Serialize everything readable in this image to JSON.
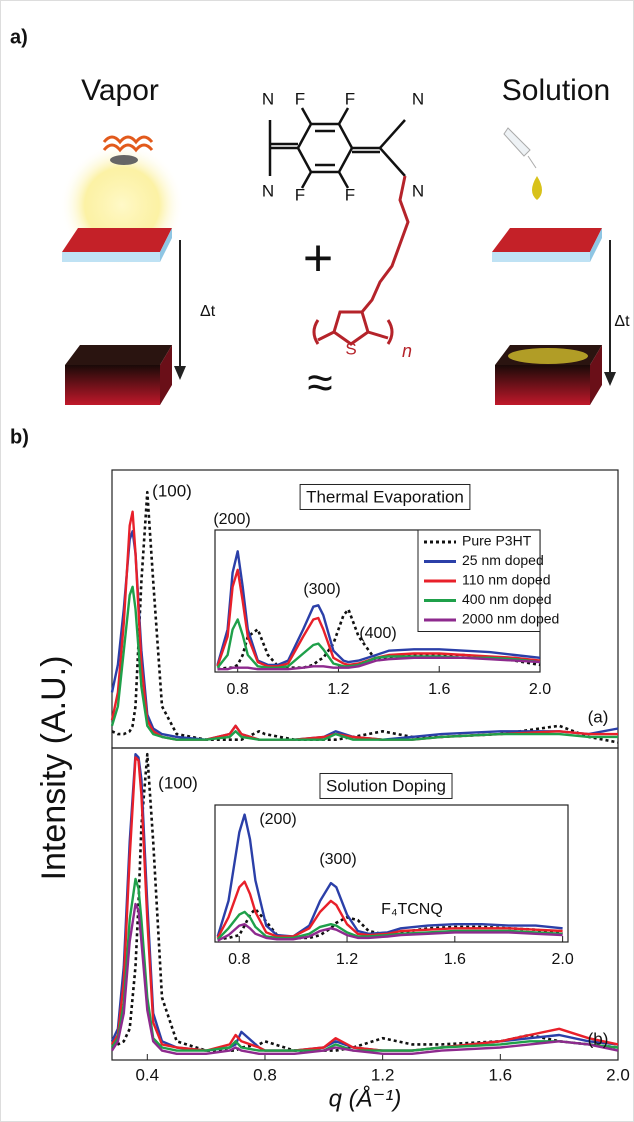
{
  "panel_a": {
    "label": "a)",
    "vapor": "Vapor",
    "solution": "Solution",
    "delta_t_vapor": "Δt",
    "delta_t_solution": "Δt",
    "plus": "+",
    "approx": "≈",
    "atoms": [
      "N",
      "N",
      "N",
      "N",
      "F",
      "F",
      "F",
      "F",
      "S"
    ],
    "repeat": "n"
  },
  "panel_b": {
    "label": "b)",
    "y_label": "Intensity (A.U.)",
    "x_label": "q (Å⁻¹)"
  },
  "chart_data": [
    {
      "type": "line",
      "title": "Thermal Evaporation",
      "annotations": [
        "(100)",
        "(a)"
      ],
      "xlim": [
        0.28,
        2.0
      ],
      "ylim": [
        0,
        1
      ],
      "x": [
        0.28,
        0.3,
        0.32,
        0.34,
        0.35,
        0.36,
        0.38,
        0.4,
        0.42,
        0.45,
        0.5,
        0.6,
        0.68,
        0.7,
        0.72,
        0.78,
        0.8,
        0.9,
        1.0,
        1.04,
        1.1,
        1.2,
        1.3,
        1.4,
        1.6,
        1.8,
        1.9,
        2.0
      ],
      "series": [
        {
          "color": "#111111",
          "dashed": true,
          "values": [
            0.06,
            0.05,
            0.05,
            0.06,
            0.08,
            0.15,
            0.6,
            0.92,
            0.6,
            0.15,
            0.05,
            0.03,
            0.03,
            0.03,
            0.03,
            0.06,
            0.05,
            0.03,
            0.03,
            0.03,
            0.04,
            0.06,
            0.04,
            0.04,
            0.05,
            0.08,
            0.04,
            0.02
          ]
        },
        {
          "color": "#2b3fa8",
          "values": [
            0.2,
            0.3,
            0.5,
            0.75,
            0.78,
            0.7,
            0.35,
            0.12,
            0.07,
            0.05,
            0.04,
            0.03,
            0.05,
            0.08,
            0.05,
            0.03,
            0.03,
            0.03,
            0.04,
            0.06,
            0.04,
            0.03,
            0.04,
            0.05,
            0.06,
            0.06,
            0.05,
            0.07
          ]
        },
        {
          "color": "#e8202a",
          "values": [
            0.1,
            0.2,
            0.45,
            0.8,
            0.85,
            0.7,
            0.3,
            0.1,
            0.06,
            0.04,
            0.03,
            0.03,
            0.05,
            0.08,
            0.05,
            0.03,
            0.03,
            0.03,
            0.04,
            0.05,
            0.04,
            0.03,
            0.03,
            0.04,
            0.05,
            0.06,
            0.05,
            0.05
          ]
        },
        {
          "color": "#1fa04a",
          "values": [
            0.08,
            0.15,
            0.35,
            0.55,
            0.58,
            0.5,
            0.22,
            0.08,
            0.05,
            0.04,
            0.03,
            0.03,
            0.04,
            0.06,
            0.04,
            0.03,
            0.03,
            0.03,
            0.03,
            0.05,
            0.03,
            0.03,
            0.03,
            0.04,
            0.05,
            0.05,
            0.04,
            0.04
          ]
        }
      ]
    },
    {
      "type": "line",
      "annotations": [
        "(200)",
        "(300)",
        "(400)"
      ],
      "xlim": [
        0.71,
        2.0
      ],
      "ylim": [
        0,
        1
      ],
      "xticks": [
        0.8,
        1.2,
        1.6,
        {
          "value": 2,
          "label": "2.0"
        }
      ],
      "legend": "upper right",
      "x": [
        0.72,
        0.76,
        0.78,
        0.8,
        0.82,
        0.84,
        0.88,
        0.92,
        0.96,
        1.0,
        1.06,
        1.1,
        1.12,
        1.14,
        1.18,
        1.22,
        1.24,
        1.28,
        1.35,
        1.4,
        1.5,
        1.6,
        1.7,
        1.8,
        1.9,
        2.0
      ],
      "series": [
        {
          "name": "Pure P3HT",
          "color": "#111111",
          "dashed": true,
          "values": [
            0.02,
            0.03,
            0.03,
            0.05,
            0.12,
            0.25,
            0.3,
            0.12,
            0.04,
            0.03,
            0.03,
            0.05,
            0.08,
            0.1,
            0.2,
            0.4,
            0.44,
            0.25,
            0.08,
            0.1,
            0.12,
            0.12,
            0.12,
            0.1,
            0.08,
            0.05
          ]
        },
        {
          "name": "25 nm doped",
          "color": "#2b3fa8",
          "values": [
            0.05,
            0.3,
            0.7,
            0.85,
            0.6,
            0.3,
            0.08,
            0.05,
            0.05,
            0.08,
            0.3,
            0.46,
            0.47,
            0.4,
            0.15,
            0.08,
            0.07,
            0.08,
            0.12,
            0.15,
            0.16,
            0.16,
            0.15,
            0.14,
            0.12,
            0.1
          ]
        },
        {
          "name": "110 nm doped",
          "color": "#e8202a",
          "values": [
            0.04,
            0.25,
            0.6,
            0.72,
            0.5,
            0.25,
            0.07,
            0.04,
            0.04,
            0.06,
            0.25,
            0.37,
            0.38,
            0.3,
            0.1,
            0.06,
            0.05,
            0.06,
            0.1,
            0.12,
            0.13,
            0.13,
            0.12,
            0.11,
            0.1,
            0.08
          ]
        },
        {
          "name": "400 nm doped",
          "color": "#1fa04a",
          "values": [
            0.03,
            0.12,
            0.3,
            0.37,
            0.26,
            0.12,
            0.04,
            0.03,
            0.03,
            0.04,
            0.13,
            0.19,
            0.2,
            0.16,
            0.06,
            0.04,
            0.04,
            0.05,
            0.1,
            0.11,
            0.11,
            0.11,
            0.1,
            0.1,
            0.09,
            0.07
          ]
        },
        {
          "name": "2000 nm doped",
          "color": "#8e2a8e",
          "values": [
            0.02,
            0.02,
            0.03,
            0.03,
            0.03,
            0.03,
            0.02,
            0.02,
            0.02,
            0.02,
            0.03,
            0.04,
            0.04,
            0.04,
            0.03,
            0.03,
            0.03,
            0.04,
            0.08,
            0.09,
            0.1,
            0.1,
            0.1,
            0.09,
            0.08,
            0.07
          ]
        }
      ]
    },
    {
      "type": "line",
      "title": "Solution Doping",
      "annotations": [
        "(100)",
        "(b)"
      ],
      "xlim": [
        0.28,
        2.0
      ],
      "ylim": [
        0,
        1
      ],
      "xticks": [
        0.4,
        0.8,
        1.2,
        1.6,
        {
          "value": 2,
          "label": "2.0"
        }
      ],
      "x": [
        0.28,
        0.3,
        0.32,
        0.34,
        0.36,
        0.37,
        0.38,
        0.4,
        0.42,
        0.45,
        0.5,
        0.6,
        0.68,
        0.7,
        0.72,
        0.78,
        0.8,
        0.9,
        1.0,
        1.04,
        1.1,
        1.2,
        1.3,
        1.4,
        1.6,
        1.7,
        1.8,
        1.9,
        2.0
      ],
      "series": [
        {
          "color": "#111111",
          "dashed": true,
          "values": [
            0.04,
            0.05,
            0.06,
            0.1,
            0.3,
            0.5,
            0.75,
            0.98,
            0.7,
            0.2,
            0.06,
            0.03,
            0.03,
            0.03,
            0.04,
            0.05,
            0.06,
            0.03,
            0.03,
            0.03,
            0.04,
            0.07,
            0.05,
            0.05,
            0.06,
            0.08,
            0.06,
            0.05,
            0.04
          ]
        },
        {
          "color": "#2b3fa8",
          "values": [
            0.06,
            0.1,
            0.3,
            0.7,
            0.98,
            0.97,
            0.9,
            0.5,
            0.15,
            0.06,
            0.04,
            0.03,
            0.04,
            0.05,
            0.09,
            0.04,
            0.03,
            0.03,
            0.04,
            0.06,
            0.04,
            0.03,
            0.03,
            0.04,
            0.06,
            0.07,
            0.08,
            0.06,
            0.05
          ]
        },
        {
          "color": "#e8202a",
          "values": [
            0.05,
            0.08,
            0.25,
            0.65,
            0.97,
            0.96,
            0.85,
            0.45,
            0.12,
            0.05,
            0.04,
            0.03,
            0.05,
            0.08,
            0.06,
            0.04,
            0.03,
            0.03,
            0.04,
            0.07,
            0.04,
            0.03,
            0.03,
            0.04,
            0.06,
            0.08,
            0.1,
            0.07,
            0.05
          ]
        },
        {
          "color": "#1fa04a",
          "values": [
            0.04,
            0.07,
            0.18,
            0.45,
            0.58,
            0.55,
            0.45,
            0.2,
            0.07,
            0.04,
            0.03,
            0.03,
            0.04,
            0.06,
            0.04,
            0.03,
            0.03,
            0.03,
            0.03,
            0.05,
            0.03,
            0.03,
            0.03,
            0.04,
            0.05,
            0.06,
            0.06,
            0.05,
            0.04
          ]
        },
        {
          "color": "#8e2a8e",
          "values": [
            0.03,
            0.06,
            0.15,
            0.38,
            0.5,
            0.48,
            0.38,
            0.16,
            0.06,
            0.03,
            0.02,
            0.02,
            0.03,
            0.04,
            0.03,
            0.02,
            0.02,
            0.02,
            0.03,
            0.04,
            0.03,
            0.02,
            0.02,
            0.03,
            0.04,
            0.05,
            0.06,
            0.05,
            0.03
          ]
        }
      ]
    },
    {
      "type": "line",
      "annotations": [
        "(200)",
        "(300)",
        "F₄TCNQ"
      ],
      "xlim": [
        0.71,
        2.02
      ],
      "ylim": [
        0,
        1
      ],
      "xticks": [
        0.8,
        1.2,
        1.6,
        {
          "value": 2,
          "label": "2.0"
        }
      ],
      "x": [
        0.72,
        0.76,
        0.8,
        0.82,
        0.84,
        0.86,
        0.9,
        0.94,
        1.0,
        1.06,
        1.1,
        1.14,
        1.16,
        1.2,
        1.24,
        1.28,
        1.35,
        1.4,
        1.5,
        1.6,
        1.7,
        1.8,
        1.9,
        2.0
      ],
      "series": [
        {
          "color": "#111111",
          "dashed": true,
          "values": [
            0.02,
            0.03,
            0.05,
            0.12,
            0.2,
            0.24,
            0.15,
            0.05,
            0.03,
            0.03,
            0.05,
            0.1,
            0.14,
            0.18,
            0.16,
            0.08,
            0.05,
            0.07,
            0.1,
            0.11,
            0.11,
            0.1,
            0.09,
            0.06
          ]
        },
        {
          "color": "#2b3fa8",
          "values": [
            0.04,
            0.3,
            0.8,
            0.93,
            0.75,
            0.45,
            0.12,
            0.05,
            0.04,
            0.12,
            0.3,
            0.43,
            0.4,
            0.2,
            0.08,
            0.06,
            0.07,
            0.1,
            0.12,
            0.13,
            0.13,
            0.12,
            0.12,
            0.1
          ]
        },
        {
          "color": "#e8202a",
          "values": [
            0.03,
            0.18,
            0.4,
            0.44,
            0.35,
            0.22,
            0.07,
            0.04,
            0.04,
            0.1,
            0.22,
            0.3,
            0.27,
            0.13,
            0.06,
            0.05,
            0.06,
            0.08,
            0.09,
            0.1,
            0.1,
            0.1,
            0.09,
            0.08
          ]
        },
        {
          "color": "#1fa04a",
          "values": [
            0.02,
            0.1,
            0.2,
            0.22,
            0.18,
            0.11,
            0.04,
            0.03,
            0.03,
            0.06,
            0.11,
            0.13,
            0.12,
            0.07,
            0.04,
            0.04,
            0.05,
            0.06,
            0.07,
            0.08,
            0.08,
            0.08,
            0.07,
            0.06
          ]
        },
        {
          "color": "#8e2a8e",
          "values": [
            0.01,
            0.05,
            0.12,
            0.13,
            0.1,
            0.06,
            0.03,
            0.02,
            0.02,
            0.04,
            0.08,
            0.1,
            0.09,
            0.05,
            0.03,
            0.03,
            0.04,
            0.05,
            0.06,
            0.07,
            0.07,
            0.07,
            0.06,
            0.05
          ]
        }
      ]
    }
  ]
}
